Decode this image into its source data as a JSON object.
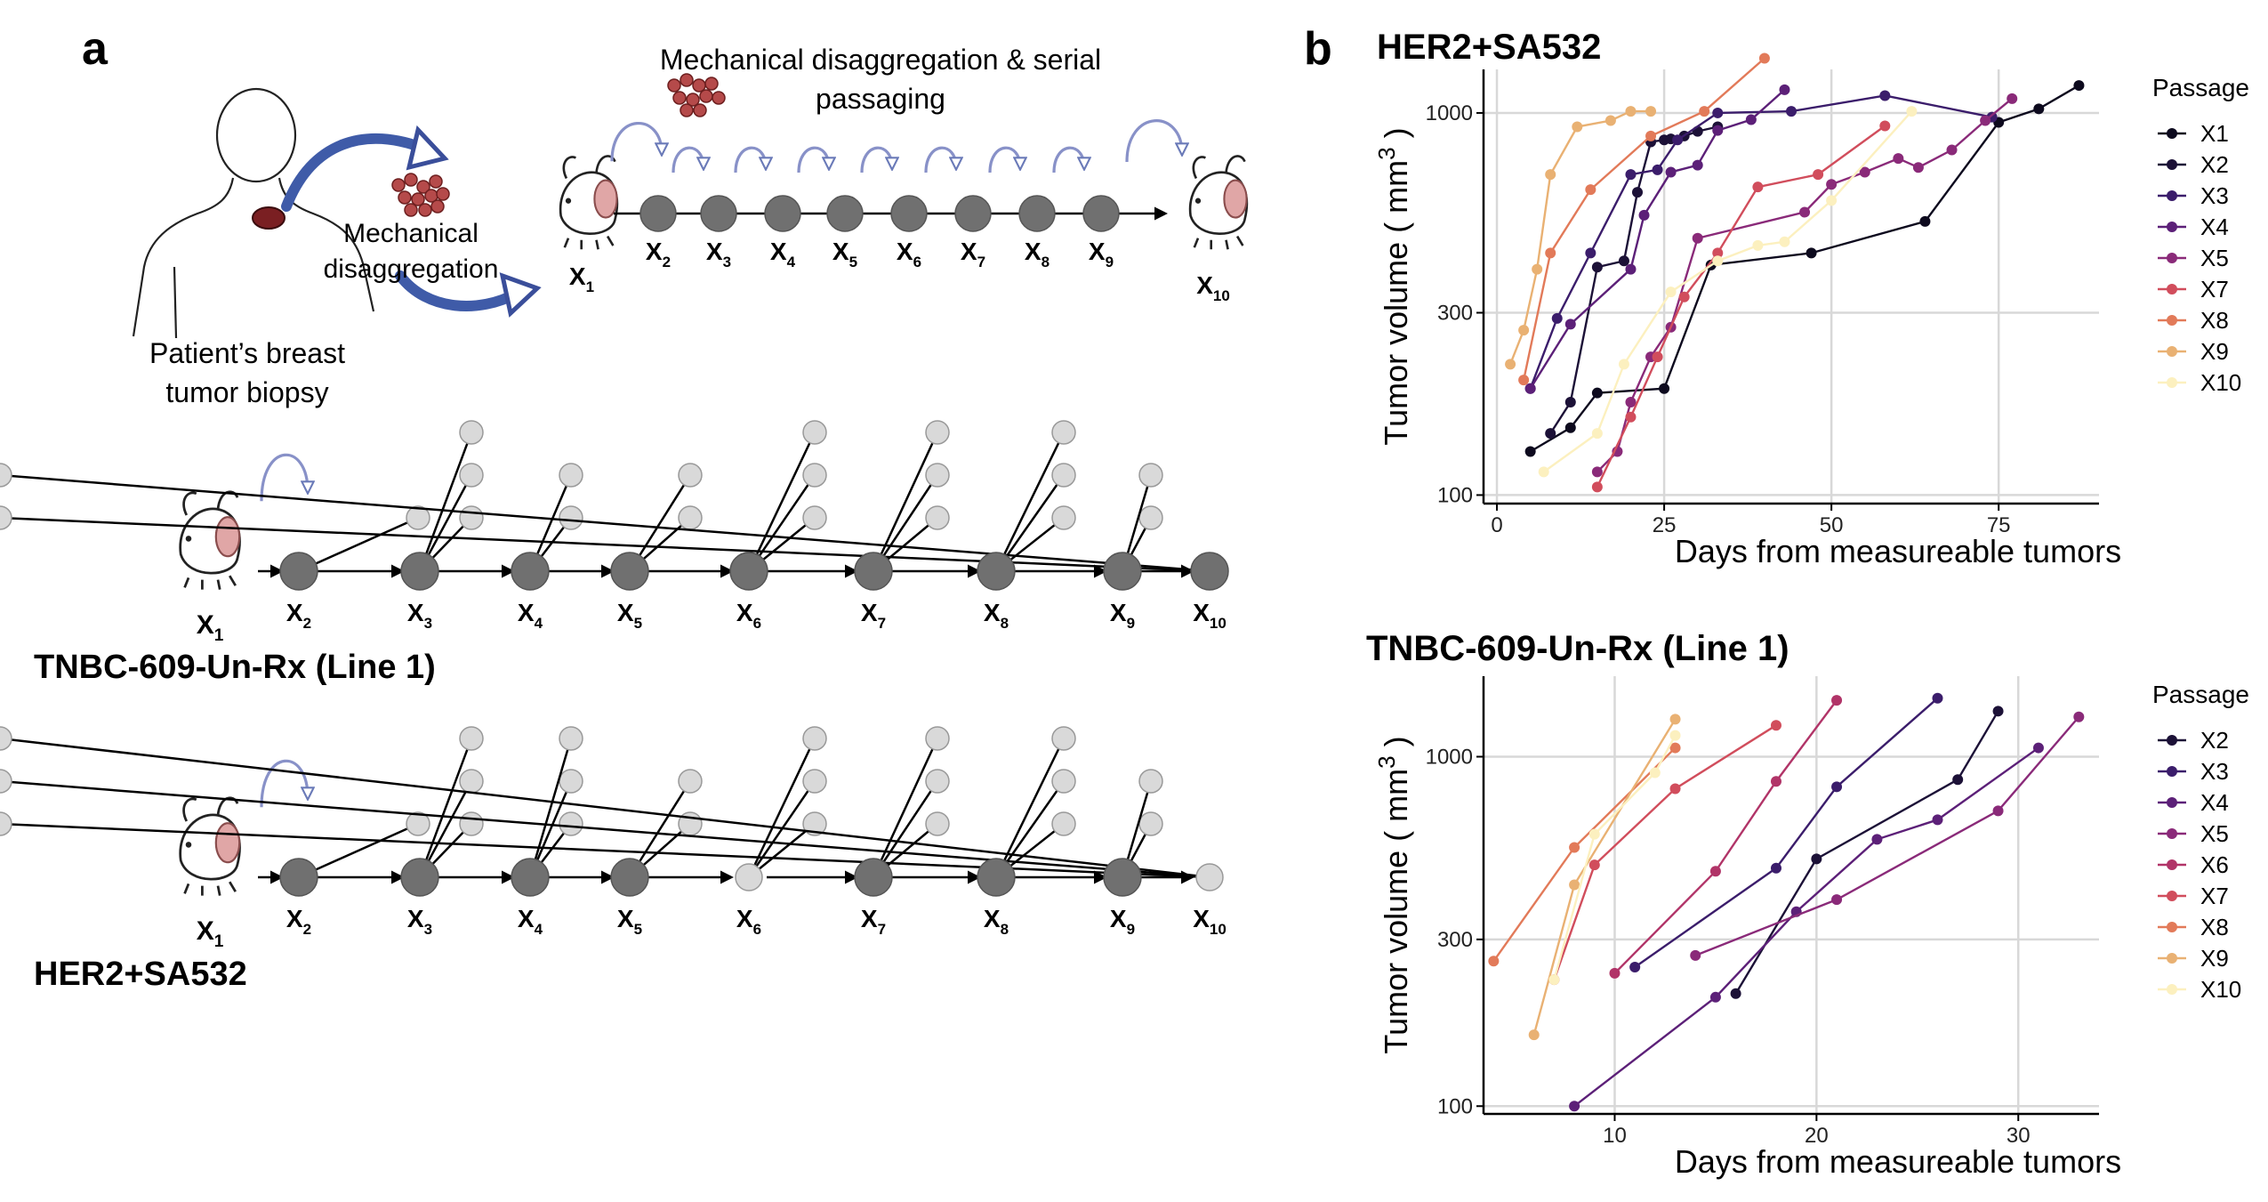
{
  "panel_a": {
    "label": "a",
    "top": {
      "serial_caption_line1": "Mechanical disaggregation & serial",
      "serial_caption_line2": "passaging",
      "mech_line1": "Mechanical",
      "mech_line2": "disaggregation",
      "biopsy_line1": "Patient’s breast",
      "biopsy_line2": "tumor biopsy",
      "passages": [
        "X2",
        "X3",
        "X4",
        "X5",
        "X6",
        "X7",
        "X8",
        "X9"
      ],
      "x1": "X1",
      "x10": "X10"
    },
    "tree_tnbc": {
      "title": "TNBC-609-Un-Rx (Line 1)",
      "x1": "X1",
      "passages": [
        "X2",
        "X3",
        "X4",
        "X5",
        "X6",
        "X7",
        "X8",
        "X9",
        "X10"
      ],
      "branch_counts": [
        1,
        3,
        2,
        2,
        3,
        3,
        3,
        2,
        2,
        0
      ],
      "node_colors": [
        "dark",
        "dark",
        "dark",
        "dark",
        "dark",
        "dark",
        "dark",
        "dark",
        "dark"
      ]
    },
    "tree_her2": {
      "title": "HER2+SA532",
      "x1": "X1",
      "passages": [
        "X2",
        "X3",
        "X4",
        "X5",
        "X6",
        "X7",
        "X8",
        "X9",
        "X10"
      ],
      "branch_counts": [
        1,
        3,
        3,
        2,
        3,
        3,
        3,
        2,
        3,
        0
      ],
      "node_colors": [
        "dark",
        "dark",
        "dark",
        "dark",
        "light",
        "dark",
        "dark",
        "dark",
        "light"
      ]
    }
  },
  "panel_b": {
    "label": "b",
    "passage_colors": {
      "X1": "#0d0a1e",
      "X2": "#1c1137",
      "X3": "#3b1d6b",
      "X4": "#5c2078",
      "X5": "#8a2a79",
      "X6": "#b13468",
      "X7": "#d14d5c",
      "X8": "#e27a59",
      "X9": "#e9b173",
      "X10": "#fcf0bf"
    },
    "chart_her2": {
      "title": "HER2+SA532",
      "legend_title": "Passage",
      "legend": [
        "X1",
        "X2",
        "X3",
        "X4",
        "X5",
        "X7",
        "X8",
        "X9",
        "X10"
      ]
    },
    "chart_tnbc": {
      "title": "TNBC-609-Un-Rx (Line 1)",
      "legend_title": "Passage",
      "legend": [
        "X2",
        "X3",
        "X4",
        "X5",
        "X6",
        "X7",
        "X8",
        "X9",
        "X10"
      ]
    }
  },
  "chart_data": [
    {
      "type": "line",
      "title": "HER2+SA532",
      "xlabel": "Days from measureable tumors",
      "ylabel": "Tumor volume ( mm )",
      "ylabel_superscript": "3",
      "x_ticks": [
        0,
        25,
        50,
        75
      ],
      "y_ticks": [
        100,
        300,
        1000
      ],
      "xlim": [
        -2,
        90
      ],
      "ylim": [
        95,
        1300
      ],
      "y_scale": "log",
      "grid": true,
      "legend_title": "Passage",
      "legend_position": "right",
      "series": [
        {
          "name": "X1",
          "points": [
            [
              5,
              130
            ],
            [
              11,
              150
            ],
            [
              15,
              185
            ],
            [
              25,
              190
            ],
            [
              32,
              400
            ],
            [
              47,
              430
            ],
            [
              64,
              520
            ],
            [
              75,
              945
            ],
            [
              81,
              1025
            ],
            [
              87,
              1180
            ]
          ]
        },
        {
          "name": "X2",
          "points": [
            [
              8,
              145
            ],
            [
              11,
              175
            ],
            [
              15,
              395
            ],
            [
              19,
              410
            ],
            [
              21,
              620
            ],
            [
              23,
              840
            ],
            [
              25,
              850
            ],
            [
              26,
              855
            ],
            [
              28,
              870
            ],
            [
              30,
              895
            ],
            [
              33,
              920
            ]
          ]
        },
        {
          "name": "X3",
          "points": [
            [
              5,
              190
            ],
            [
              9,
              290
            ],
            [
              14,
              430
            ],
            [
              20,
              690
            ],
            [
              24,
              710
            ],
            [
              27,
              850
            ],
            [
              33,
              1000
            ],
            [
              44,
              1010
            ],
            [
              58,
              1110
            ],
            [
              74,
              975
            ]
          ]
        },
        {
          "name": "X4",
          "points": [
            [
              5,
              190
            ],
            [
              11,
              280
            ],
            [
              20,
              390
            ],
            [
              22,
              540
            ],
            [
              26,
              700
            ],
            [
              30,
              730
            ],
            [
              33,
              900
            ],
            [
              38,
              960
            ],
            [
              43,
              1150
            ]
          ]
        },
        {
          "name": "X5",
          "points": [
            [
              15,
              115
            ],
            [
              18,
              130
            ],
            [
              20,
              175
            ],
            [
              23,
              230
            ],
            [
              26,
              275
            ],
            [
              30,
              470
            ],
            [
              46,
              550
            ],
            [
              50,
              650
            ],
            [
              55,
              700
            ],
            [
              60,
              760
            ],
            [
              63,
              720
            ],
            [
              68,
              800
            ],
            [
              73,
              955
            ],
            [
              77,
              1090
            ]
          ]
        },
        {
          "name": "X7",
          "points": [
            [
              15,
              105
            ],
            [
              20,
              160
            ],
            [
              24,
              230
            ],
            [
              28,
              330
            ],
            [
              33,
              430
            ],
            [
              39,
              640
            ],
            [
              48,
              690
            ],
            [
              58,
              925
            ]
          ]
        },
        {
          "name": "X8",
          "points": [
            [
              4,
              200
            ],
            [
              8,
              430
            ],
            [
              14,
              630
            ],
            [
              23,
              870
            ],
            [
              31,
              1010
            ],
            [
              40,
              1390
            ]
          ]
        },
        {
          "name": "X9",
          "points": [
            [
              2,
              220
            ],
            [
              4,
              270
            ],
            [
              6,
              390
            ],
            [
              8,
              690
            ],
            [
              12,
              920
            ],
            [
              17,
              955
            ],
            [
              20,
              1010
            ],
            [
              23,
              1010
            ]
          ]
        },
        {
          "name": "X10",
          "points": [
            [
              7,
              115
            ],
            [
              15,
              145
            ],
            [
              19,
              220
            ],
            [
              26,
              340
            ],
            [
              33,
              410
            ],
            [
              39,
              450
            ],
            [
              43,
              460
            ],
            [
              50,
              590
            ],
            [
              62,
              1010
            ]
          ]
        }
      ]
    },
    {
      "type": "line",
      "title": "TNBC-609-Un-Rx (Line 1)",
      "xlabel": "Days from measureable tumors",
      "ylabel": "Tumor volume ( mm )",
      "ylabel_superscript": "3",
      "x_ticks": [
        10,
        20,
        30
      ],
      "y_ticks": [
        100,
        300,
        1000
      ],
      "xlim": [
        3.5,
        34
      ],
      "ylim": [
        95,
        1700
      ],
      "y_scale": "log",
      "grid": true,
      "legend_title": "Passage",
      "legend_position": "right",
      "series": [
        {
          "name": "X2",
          "points": [
            [
              16,
              210
            ],
            [
              20,
              510
            ],
            [
              27,
              860
            ],
            [
              29,
              1350
            ]
          ]
        },
        {
          "name": "X3",
          "points": [
            [
              11,
              250
            ],
            [
              18,
              480
            ],
            [
              21,
              820
            ],
            [
              26,
              1470
            ]
          ]
        },
        {
          "name": "X4",
          "points": [
            [
              8,
              100
            ],
            [
              15,
              205
            ],
            [
              19,
              360
            ],
            [
              23,
              580
            ],
            [
              26,
              660
            ],
            [
              31,
              1060
            ]
          ]
        },
        {
          "name": "X5",
          "points": [
            [
              14,
              270
            ],
            [
              21,
              390
            ],
            [
              29,
              700
            ],
            [
              33,
              1300
            ]
          ]
        },
        {
          "name": "X6",
          "points": [
            [
              10,
              240
            ],
            [
              15,
              470
            ],
            [
              18,
              850
            ],
            [
              21,
              1450
            ]
          ]
        },
        {
          "name": "X7",
          "points": [
            [
              7,
              230
            ],
            [
              9,
              490
            ],
            [
              13,
              810
            ],
            [
              18,
              1230
            ]
          ]
        },
        {
          "name": "X8",
          "points": [
            [
              4,
              260
            ],
            [
              8,
              550
            ],
            [
              13,
              1060
            ]
          ]
        },
        {
          "name": "X9",
          "points": [
            [
              6,
              160
            ],
            [
              8,
              430
            ],
            [
              13,
              1280
            ]
          ]
        },
        {
          "name": "X10",
          "points": [
            [
              7,
              230
            ],
            [
              9,
              600
            ],
            [
              12,
              900
            ],
            [
              13,
              1150
            ]
          ]
        }
      ]
    }
  ]
}
